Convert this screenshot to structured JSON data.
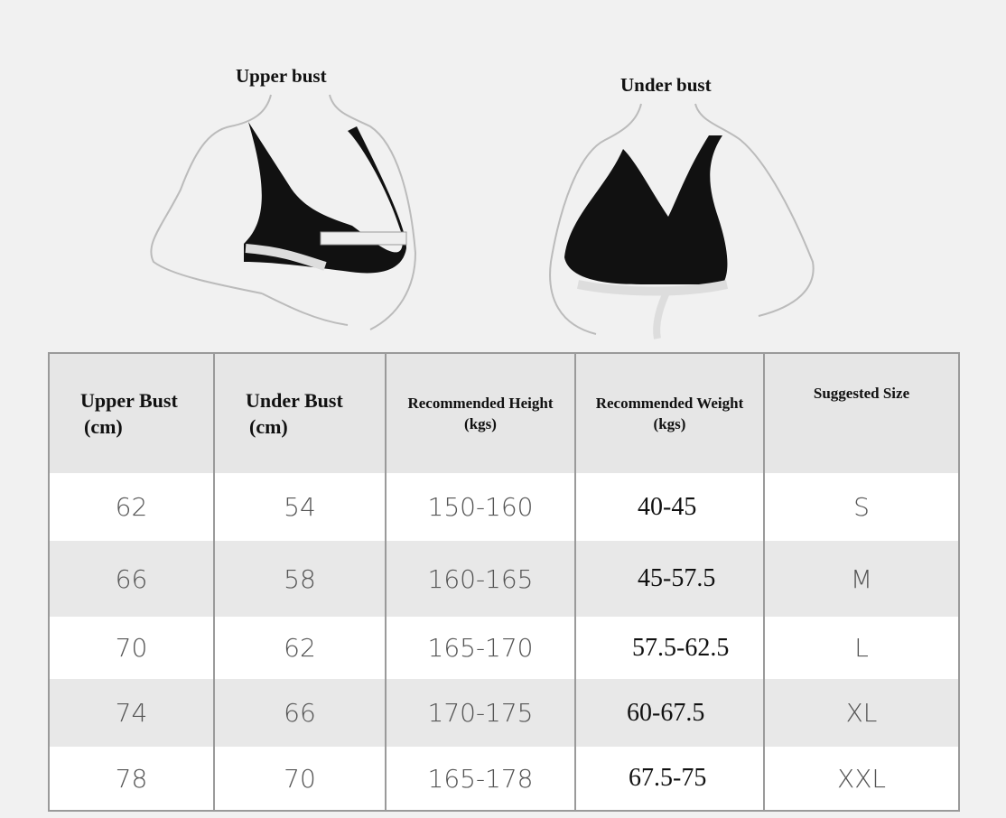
{
  "illustrations": {
    "left_label": "Upper bust",
    "right_label": "Under bust"
  },
  "table": {
    "headers": [
      {
        "line1": "Upper Bust",
        "line2": "(cm)"
      },
      {
        "line1": "Under Bust",
        "line2": "(cm)"
      },
      {
        "line1": "Recommended Height",
        "line2": "(kgs)"
      },
      {
        "line1": "Recommended Weight",
        "line2": "(kgs)"
      },
      {
        "line1": "Suggested Size",
        "line2": ""
      }
    ],
    "rows": [
      [
        "62",
        "54",
        "150-160",
        "40-45",
        "S"
      ],
      [
        "66",
        "58",
        "160-165",
        "45-57.5",
        "M"
      ],
      [
        "70",
        "62",
        "165-170",
        "57.5-62.5",
        "L"
      ],
      [
        "74",
        "66",
        "170-175",
        "60-67.5",
        "XL"
      ],
      [
        "78",
        "70",
        "165-178",
        "67.5-75",
        "XXL"
      ]
    ]
  }
}
